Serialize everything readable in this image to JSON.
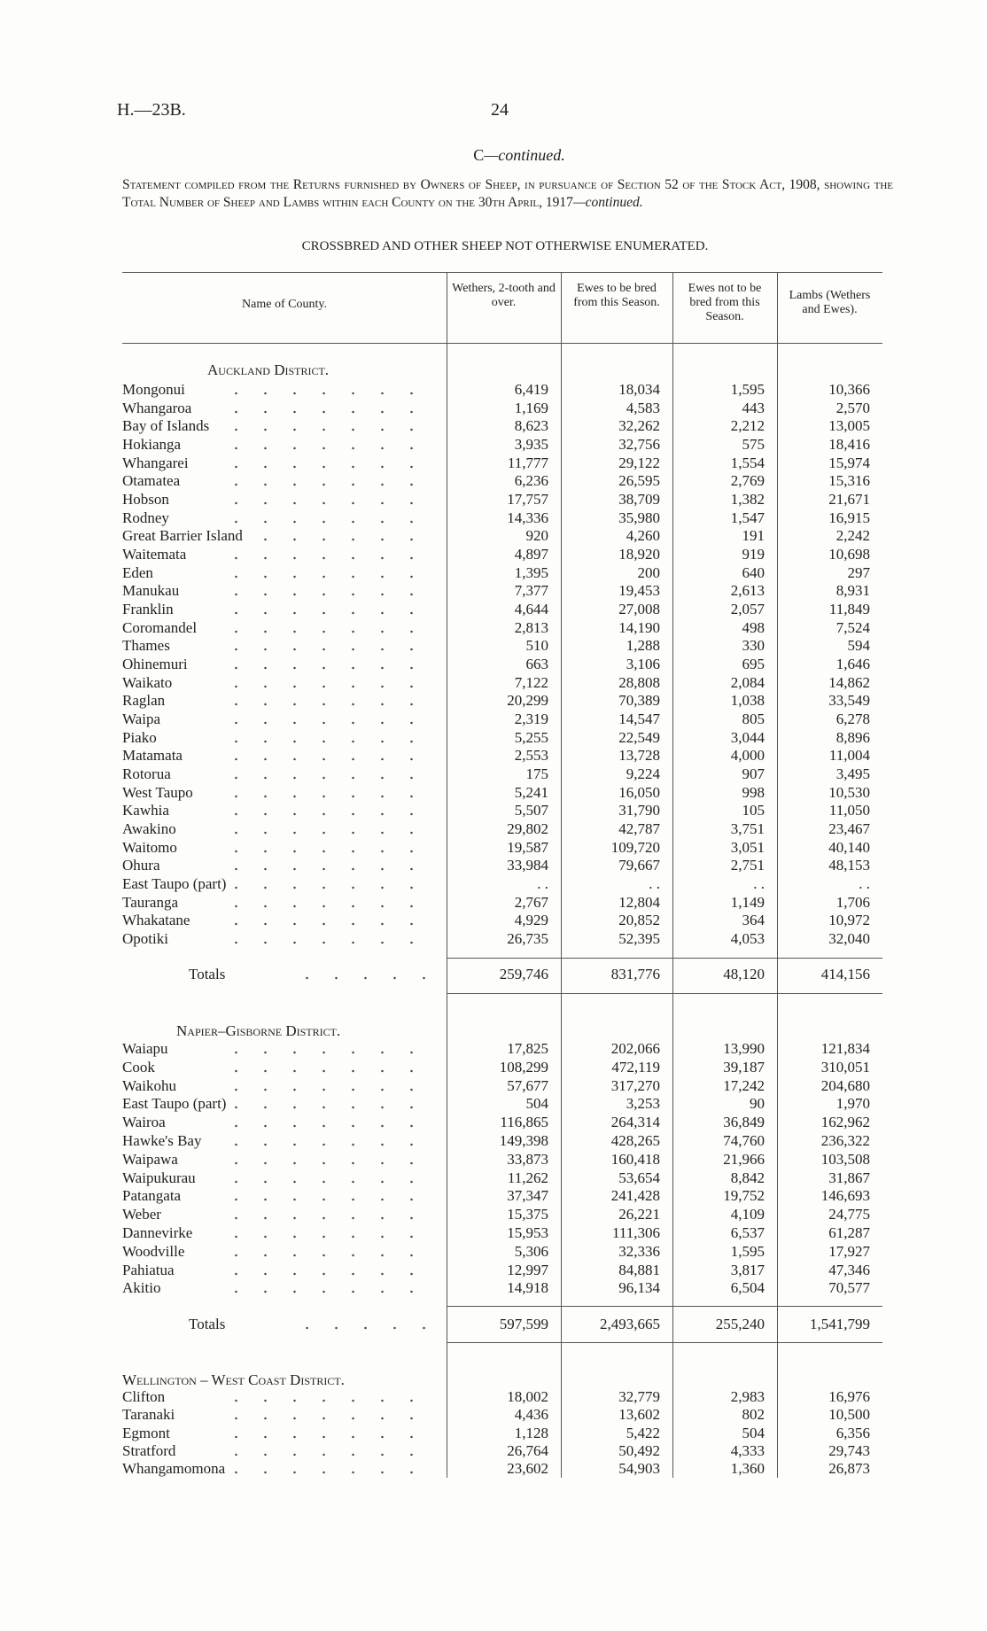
{
  "header": {
    "ref": "H.—23B.",
    "page": "24"
  },
  "section": {
    "letter": "C",
    "continued": "—continued."
  },
  "statement": {
    "text": "Statement compiled from the Returns furnished by Owners of Sheep, in pursuance of Section 52 of the Stock Act, 1908, showing the Total Number of Sheep and Lambs within each County on the 30th April, 1917",
    "continued": "—continued."
  },
  "subtitle": "CROSSBRED AND OTHER SHEEP NOT OTHERWISE ENUMERATED.",
  "table": {
    "columns": [
      "Name of County.",
      "Wethers, 2-tooth and over.",
      "Ewes to be bred from this Season.",
      "Ewes not to be bred from this Season.",
      "Lambs (Wethers and Ewes)."
    ],
    "sections": [
      {
        "title": "Auckland District.",
        "rows": [
          [
            "Mongonui",
            "6,419",
            "18,034",
            "1,595",
            "10,366"
          ],
          [
            "Whangaroa",
            "1,169",
            "4,583",
            "443",
            "2,570"
          ],
          [
            "Bay of Islands",
            "8,623",
            "32,262",
            "2,212",
            "13,005"
          ],
          [
            "Hokianga",
            "3,935",
            "32,756",
            "575",
            "18,416"
          ],
          [
            "Whangarei",
            "11,777",
            "29,122",
            "1,554",
            "15,974"
          ],
          [
            "Otamatea",
            "6,236",
            "26,595",
            "2,769",
            "15,316"
          ],
          [
            "Hobson",
            "17,757",
            "38,709",
            "1,382",
            "21,671"
          ],
          [
            "Rodney",
            "14,336",
            "35,980",
            "1,547",
            "16,915"
          ],
          [
            "Great Barrier Island",
            "920",
            "4,260",
            "191",
            "2,242"
          ],
          [
            "Waitemata",
            "4,897",
            "18,920",
            "919",
            "10,698"
          ],
          [
            "Eden",
            "1,395",
            "200",
            "640",
            "297"
          ],
          [
            "Manukau",
            "7,377",
            "19,453",
            "2,613",
            "8,931"
          ],
          [
            "Franklin",
            "4,644",
            "27,008",
            "2,057",
            "11,849"
          ],
          [
            "Coromandel",
            "2,813",
            "14,190",
            "498",
            "7,524"
          ],
          [
            "Thames",
            "510",
            "1,288",
            "330",
            "594"
          ],
          [
            "Ohinemuri",
            "663",
            "3,106",
            "695",
            "1,646"
          ],
          [
            "Waikato",
            "7,122",
            "28,808",
            "2,084",
            "14,862"
          ],
          [
            "Raglan",
            "20,299",
            "70,389",
            "1,038",
            "33,549"
          ],
          [
            "Waipa",
            "2,319",
            "14,547",
            "805",
            "6,278"
          ],
          [
            "Piako",
            "5,255",
            "22,549",
            "3,044",
            "8,896"
          ],
          [
            "Matamata",
            "2,553",
            "13,728",
            "4,000",
            "11,004"
          ],
          [
            "Rotorua",
            "175",
            "9,224",
            "907",
            "3,495"
          ],
          [
            "West Taupo",
            "5,241",
            "16,050",
            "998",
            "10,530"
          ],
          [
            "Kawhia",
            "5,507",
            "31,790",
            "105",
            "11,050"
          ],
          [
            "Awakino",
            "29,802",
            "42,787",
            "3,751",
            "23,467"
          ],
          [
            "Waitomo",
            "19,587",
            "109,720",
            "3,051",
            "40,140"
          ],
          [
            "Ohura",
            "33,984",
            "79,667",
            "2,751",
            "48,153"
          ],
          [
            "East Taupo (part)",
            ". .",
            ". .",
            ". .",
            ". ."
          ],
          [
            "Tauranga",
            "2,767",
            "12,804",
            "1,149",
            "1,706"
          ],
          [
            "Whakatane",
            "4,929",
            "20,852",
            "364",
            "10,972"
          ],
          [
            "Opotiki",
            "26,735",
            "52,395",
            "4,053",
            "32,040"
          ]
        ],
        "totals_label": "Totals",
        "totals": [
          "259,746",
          "831,776",
          "48,120",
          "414,156"
        ]
      },
      {
        "title": "Napier–Gisborne District.",
        "rows": [
          [
            "Waiapu",
            "17,825",
            "202,066",
            "13,990",
            "121,834"
          ],
          [
            "Cook",
            "108,299",
            "472,119",
            "39,187",
            "310,051"
          ],
          [
            "Waikohu",
            "57,677",
            "317,270",
            "17,242",
            "204,680"
          ],
          [
            "East Taupo (part)",
            "504",
            "3,253",
            "90",
            "1,970"
          ],
          [
            "Wairoa",
            "116,865",
            "264,314",
            "36,849",
            "162,962"
          ],
          [
            "Hawke's Bay",
            "149,398",
            "428,265",
            "74,760",
            "236,322"
          ],
          [
            "Waipawa",
            "33,873",
            "160,418",
            "21,966",
            "103,508"
          ],
          [
            "Waipukurau",
            "11,262",
            "53,654",
            "8,842",
            "31,867"
          ],
          [
            "Patangata",
            "37,347",
            "241,428",
            "19,752",
            "146,693"
          ],
          [
            "Weber",
            "15,375",
            "26,221",
            "4,109",
            "24,775"
          ],
          [
            "Dannevirke",
            "15,953",
            "111,306",
            "6,537",
            "61,287"
          ],
          [
            "Woodville",
            "5,306",
            "32,336",
            "1,595",
            "17,927"
          ],
          [
            "Pahiatua",
            "12,997",
            "84,881",
            "3,817",
            "47,346"
          ],
          [
            "Akitio",
            "14,918",
            "96,134",
            "6,504",
            "70,577"
          ]
        ],
        "totals_label": "Totals",
        "totals": [
          "597,599",
          "2,493,665",
          "255,240",
          "1,541,799"
        ]
      },
      {
        "title": "Wellington – West Coast District.",
        "rows": [
          [
            "Clifton",
            "18,002",
            "32,779",
            "2,983",
            "16,976"
          ],
          [
            "Taranaki",
            "4,436",
            "13,602",
            "802",
            "10,500"
          ],
          [
            "Egmont",
            "1,128",
            "5,422",
            "504",
            "6,356"
          ],
          [
            "Stratford",
            "26,764",
            "50,492",
            "4,333",
            "29,743"
          ],
          [
            "Whangamomona",
            "23,602",
            "54,903",
            "1,360",
            "26,873"
          ]
        ]
      }
    ]
  }
}
